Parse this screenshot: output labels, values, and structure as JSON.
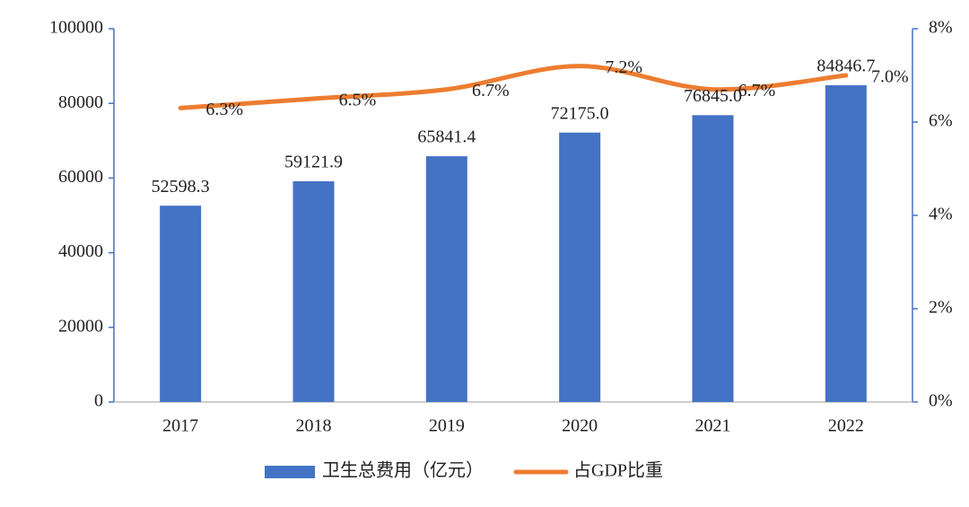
{
  "chart_data": {
    "type": "bar",
    "categories": [
      "2017",
      "2018",
      "2019",
      "2020",
      "2021",
      "2022"
    ],
    "series": [
      {
        "name": "卫生总费用（亿元）",
        "type": "bar",
        "color": "#4472C4",
        "values": [
          52598.3,
          59121.9,
          65841.4,
          72175.0,
          76845.0,
          84846.7
        ],
        "value_labels": [
          "52598.3",
          "59121.9",
          "65841.4",
          "72175.0",
          "76845.0",
          "84846.7"
        ]
      },
      {
        "name": "占GDP比重",
        "type": "line",
        "axis": "y2",
        "color": "#ED7D31",
        "values": [
          6.3,
          6.5,
          6.7,
          7.2,
          6.7,
          7.0
        ],
        "value_labels": [
          "6.3%",
          "6.5%",
          "6.7%",
          "7.2%",
          "6.7%",
          "7.0%"
        ]
      }
    ],
    "ylim": [
      0,
      100000
    ],
    "yticks": [
      0,
      20000,
      40000,
      60000,
      80000,
      100000
    ],
    "y2lim": [
      0,
      8
    ],
    "y2ticks": [
      {
        "value": 0,
        "label": "0%"
      },
      {
        "value": 2,
        "label": "2%"
      },
      {
        "value": 4,
        "label": "4%"
      },
      {
        "value": 6,
        "label": "6%"
      },
      {
        "value": 8,
        "label": "8%"
      }
    ],
    "legend": "bottom"
  }
}
